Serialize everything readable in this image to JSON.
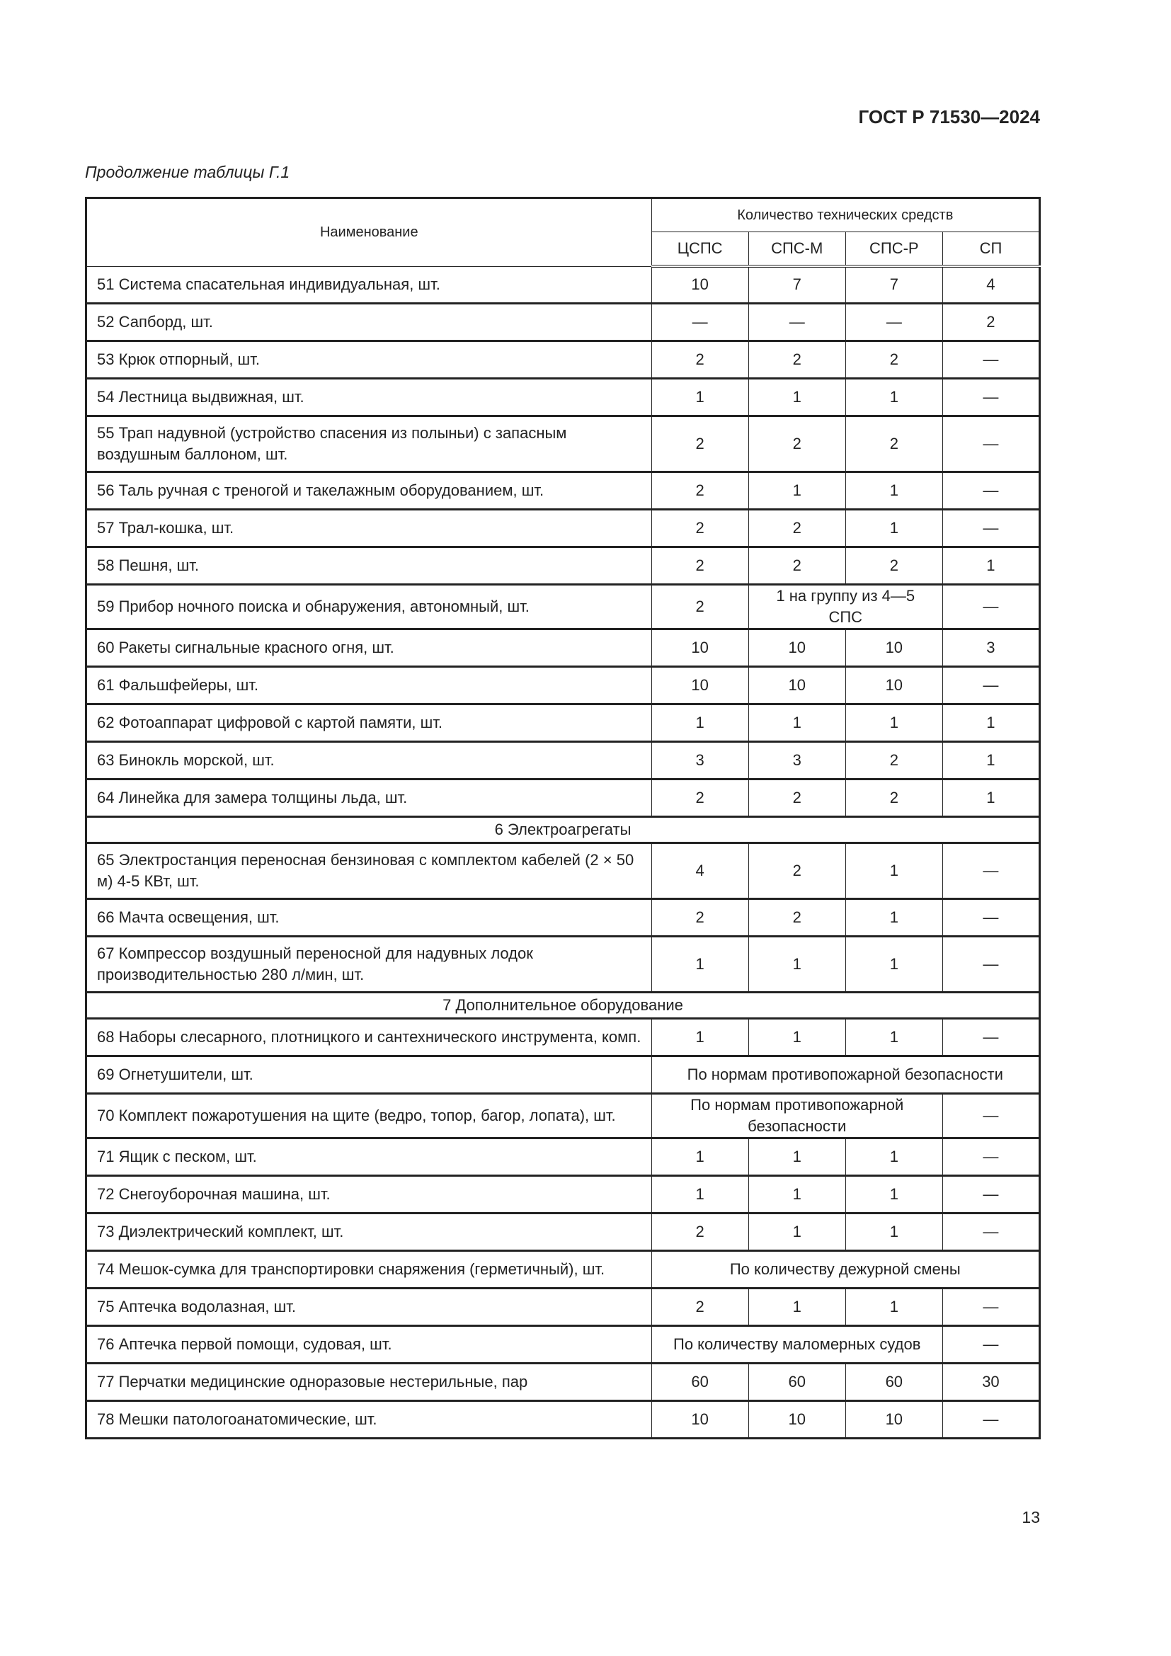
{
  "header": {
    "doc_code": "ГОСТ Р 71530—2024",
    "caption": "Продолжение таблицы Г.1"
  },
  "table": {
    "col_name": "Наименование",
    "group_header": "Количество технических средств",
    "columns": [
      "ЦСПС",
      "СПС-М",
      "СПС-Р",
      "СП"
    ],
    "rows": [
      {
        "n": "51  Система спасательная индивидуальная, шт.",
        "c": [
          {
            "v": "10"
          },
          {
            "v": "7"
          },
          {
            "v": "7"
          },
          {
            "v": "4"
          }
        ]
      },
      {
        "n": "52  Сапборд, шт.",
        "c": [
          {
            "v": "—"
          },
          {
            "v": "—"
          },
          {
            "v": "—"
          },
          {
            "v": "2"
          }
        ]
      },
      {
        "n": "53  Крюк отпорный, шт.",
        "c": [
          {
            "v": "2"
          },
          {
            "v": "2"
          },
          {
            "v": "2"
          },
          {
            "v": "—"
          }
        ]
      },
      {
        "n": "54  Лестница выдвижная, шт.",
        "c": [
          {
            "v": "1"
          },
          {
            "v": "1"
          },
          {
            "v": "1"
          },
          {
            "v": "—"
          }
        ]
      },
      {
        "n": "55  Трап надувной (устройство спасения из полыньи) с запасным воздушным баллоном, шт.",
        "c": [
          {
            "v": "2"
          },
          {
            "v": "2"
          },
          {
            "v": "2"
          },
          {
            "v": "—"
          }
        ]
      },
      {
        "n": "56  Таль ручная с треногой и такелажным оборудованием, шт.",
        "c": [
          {
            "v": "2"
          },
          {
            "v": "1"
          },
          {
            "v": "1"
          },
          {
            "v": "—"
          }
        ]
      },
      {
        "n": "57  Трал-кошка, шт.",
        "c": [
          {
            "v": "2"
          },
          {
            "v": "2"
          },
          {
            "v": "1"
          },
          {
            "v": "—"
          }
        ]
      },
      {
        "n": "58  Пешня, шт.",
        "c": [
          {
            "v": "2"
          },
          {
            "v": "2"
          },
          {
            "v": "2"
          },
          {
            "v": "1"
          }
        ]
      },
      {
        "n": "59  Прибор ночного поиска и обнаружения, автономный, шт.",
        "c": [
          {
            "v": "2"
          },
          {
            "v": "1 на группу из 4—5 СПС",
            "span": 2
          },
          {
            "v": "—"
          }
        ]
      },
      {
        "n": "60  Ракеты сигнальные красного огня, шт.",
        "c": [
          {
            "v": "10"
          },
          {
            "v": "10"
          },
          {
            "v": "10"
          },
          {
            "v": "3"
          }
        ]
      },
      {
        "n": "61  Фальшфейеры, шт.",
        "c": [
          {
            "v": "10"
          },
          {
            "v": "10"
          },
          {
            "v": "10"
          },
          {
            "v": "—"
          }
        ]
      },
      {
        "n": "62  Фотоаппарат цифровой с картой памяти, шт.",
        "c": [
          {
            "v": "1"
          },
          {
            "v": "1"
          },
          {
            "v": "1"
          },
          {
            "v": "1"
          }
        ]
      },
      {
        "n": "63  Бинокль морской, шт.",
        "c": [
          {
            "v": "3"
          },
          {
            "v": "3"
          },
          {
            "v": "2"
          },
          {
            "v": "1"
          }
        ]
      },
      {
        "n": "64  Линейка для замера толщины льда, шт.",
        "c": [
          {
            "v": "2"
          },
          {
            "v": "2"
          },
          {
            "v": "2"
          },
          {
            "v": "1"
          }
        ]
      },
      {
        "section": "6  Электроагрегаты"
      },
      {
        "n": "65  Электростанция переносная бензиновая с комплектом кабелей (2 × 50 м) 4-5 КВт, шт.",
        "c": [
          {
            "v": "4"
          },
          {
            "v": "2"
          },
          {
            "v": "1"
          },
          {
            "v": "—"
          }
        ]
      },
      {
        "n": "66  Мачта освещения, шт.",
        "c": [
          {
            "v": "2"
          },
          {
            "v": "2"
          },
          {
            "v": "1"
          },
          {
            "v": "—"
          }
        ]
      },
      {
        "n": "67  Компрессор воздушный переносной для надувных лодок производительностью 280 л/мин, шт.",
        "c": [
          {
            "v": "1"
          },
          {
            "v": "1"
          },
          {
            "v": "1"
          },
          {
            "v": "—"
          }
        ]
      },
      {
        "section": "7  Дополнительное оборудование"
      },
      {
        "n": "68  Наборы слесарного, плотницкого и сантехнического инструмента, комп.",
        "c": [
          {
            "v": "1"
          },
          {
            "v": "1"
          },
          {
            "v": "1"
          },
          {
            "v": "—"
          }
        ]
      },
      {
        "n": "69  Огнетушители, шт.",
        "c": [
          {
            "v": "По нормам противопожарной безопасности",
            "span": 4
          }
        ]
      },
      {
        "n": "70  Комплект пожаротушения на щите (ведро, топор, багор, лопата), шт.",
        "c": [
          {
            "v": "По нормам противопожарной безопасности",
            "span": 3
          },
          {
            "v": "—"
          }
        ]
      },
      {
        "n": "71  Ящик с песком, шт.",
        "c": [
          {
            "v": "1"
          },
          {
            "v": "1"
          },
          {
            "v": "1"
          },
          {
            "v": "—"
          }
        ]
      },
      {
        "n": "72  Снегоуборочная машина, шт.",
        "c": [
          {
            "v": "1"
          },
          {
            "v": "1"
          },
          {
            "v": "1"
          },
          {
            "v": "—"
          }
        ]
      },
      {
        "n": "73  Диэлектрический комплект, шт.",
        "c": [
          {
            "v": "2"
          },
          {
            "v": "1"
          },
          {
            "v": "1"
          },
          {
            "v": "—"
          }
        ]
      },
      {
        "n": "74  Мешок-сумка для транспортировки снаряжения (герметичный), шт.",
        "c": [
          {
            "v": "По количеству дежурной смены",
            "span": 4
          }
        ]
      },
      {
        "n": "75  Аптечка водолазная, шт.",
        "c": [
          {
            "v": "2"
          },
          {
            "v": "1"
          },
          {
            "v": "1"
          },
          {
            "v": "—"
          }
        ]
      },
      {
        "n": "76  Аптечка первой помощи, судовая, шт.",
        "c": [
          {
            "v": "По количеству маломерных судов",
            "span": 3
          },
          {
            "v": "—"
          }
        ]
      },
      {
        "n": "77  Перчатки медицинские одноразовые нестерильные, пар",
        "c": [
          {
            "v": "60"
          },
          {
            "v": "60"
          },
          {
            "v": "60"
          },
          {
            "v": "30"
          }
        ]
      },
      {
        "n": "78  Мешки патологоанатомические, шт.",
        "c": [
          {
            "v": "10"
          },
          {
            "v": "10"
          },
          {
            "v": "10"
          },
          {
            "v": "—"
          }
        ]
      }
    ]
  },
  "footer": {
    "page_number": "13"
  }
}
